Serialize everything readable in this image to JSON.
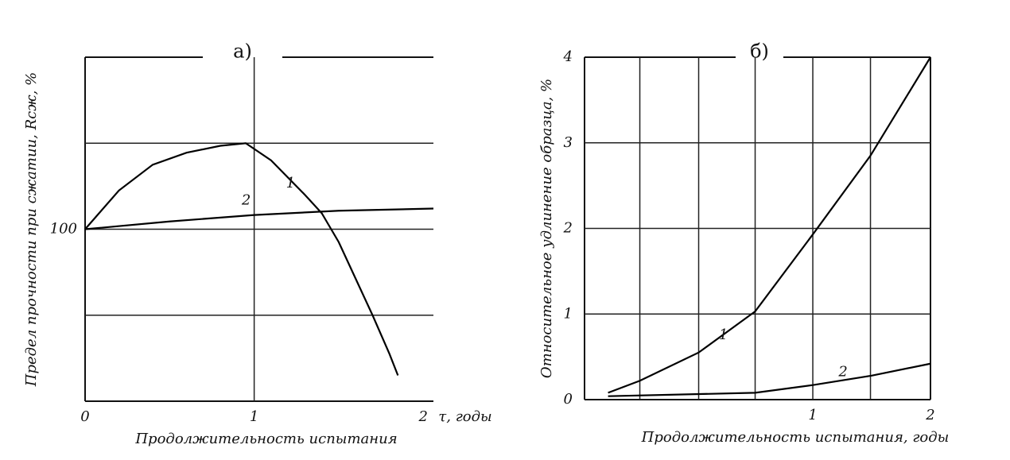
{
  "chart_data": [
    {
      "type": "line",
      "title": "а)",
      "xlabel": "Продолжительность испытания",
      "x_unit": "τ, годы",
      "ylabel": "Предел прочности при сжатии, Rсж, %",
      "xlim": [
        0,
        2.06
      ],
      "ylim": [
        60,
        140
      ],
      "xticks": [
        0,
        1,
        2
      ],
      "yticks": [
        100
      ],
      "xgrid": [
        1
      ],
      "ygrid": [
        80,
        100,
        120
      ],
      "series": [
        {
          "name": "1",
          "color": "#000000",
          "x": [
            0,
            0.2,
            0.4,
            0.6,
            0.8,
            0.95,
            1.1,
            1.3,
            1.4,
            1.5,
            1.6,
            1.7,
            1.8,
            1.85
          ],
          "values": [
            100,
            109,
            115,
            117.8,
            119.4,
            120,
            116,
            108,
            103.7,
            97,
            88.5,
            80,
            71,
            66
          ]
        },
        {
          "name": "2",
          "color": "#000000",
          "x": [
            0,
            0.5,
            1,
            1.5,
            2.06
          ],
          "values": [
            100,
            101.8,
            103.3,
            104.3,
            104.8
          ]
        }
      ]
    },
    {
      "type": "line",
      "title": "б)",
      "xlabel": "Продолжительность испытания, годы",
      "ylabel": "Относительное удлинение образца, %",
      "xlim": [
        -0.94,
        2
      ],
      "ylim": [
        0,
        4
      ],
      "xticks": [
        1,
        2
      ],
      "yticks": [
        0,
        1,
        2,
        3,
        4
      ],
      "xgrid": [
        -0.47,
        0.03,
        0.51,
        1,
        1.49
      ],
      "ygrid": [
        1,
        2,
        3
      ],
      "series": [
        {
          "name": "1",
          "color": "#000000",
          "x": [
            -0.74,
            -0.47,
            0.03,
            0.51,
            1,
            1.49,
            2
          ],
          "values": [
            0.08,
            0.22,
            0.55,
            1.03,
            1.93,
            2.85,
            4
          ]
        },
        {
          "name": "2",
          "color": "#000000",
          "x": [
            -0.74,
            0.51,
            1,
            1.5,
            2
          ],
          "values": [
            0.04,
            0.08,
            0.17,
            0.28,
            0.42
          ]
        }
      ]
    }
  ]
}
